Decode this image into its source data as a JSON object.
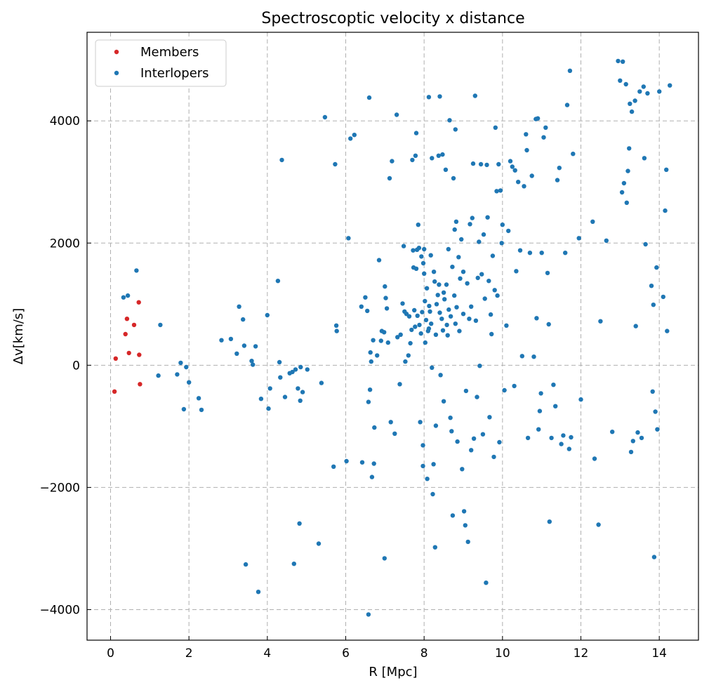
{
  "chart_data": {
    "type": "scatter",
    "title": "Spectroscoptic velocity x distance",
    "xlabel": "R [Mpc]",
    "ylabel": "Δv[km/s]",
    "xlim": [
      -0.6,
      15.0
    ],
    "ylim": [
      -4500,
      5450
    ],
    "xticks": [
      0,
      2,
      4,
      6,
      8,
      10,
      12,
      14
    ],
    "yticks": [
      -4000,
      -2000,
      0,
      2000,
      4000
    ],
    "xtick_labels": [
      "0",
      "2",
      "4",
      "6",
      "8",
      "10",
      "12",
      "14"
    ],
    "ytick_labels": [
      "−4000",
      "−2000",
      "0",
      "2000",
      "4000"
    ],
    "grid": true,
    "legend_position": "top-left",
    "series": [
      {
        "name": "Members",
        "color": "#d62728",
        "points": [
          [
            0.1,
            -430
          ],
          [
            0.13,
            110
          ],
          [
            0.38,
            510
          ],
          [
            0.42,
            760
          ],
          [
            0.47,
            200
          ],
          [
            0.6,
            660
          ],
          [
            0.72,
            1030
          ],
          [
            0.73,
            170
          ],
          [
            0.75,
            -310
          ]
        ]
      },
      {
        "name": "Interlopers",
        "color": "#1f77b4",
        "points": [
          [
            0.33,
            1110
          ],
          [
            0.44,
            1140
          ],
          [
            0.66,
            1550
          ],
          [
            1.22,
            -170
          ],
          [
            1.27,
            660
          ],
          [
            1.7,
            -150
          ],
          [
            1.79,
            40
          ],
          [
            1.87,
            -720
          ],
          [
            1.93,
            -30
          ],
          [
            2.0,
            -280
          ],
          [
            2.25,
            -540
          ],
          [
            2.32,
            -730
          ],
          [
            2.83,
            410
          ],
          [
            3.07,
            430
          ],
          [
            3.22,
            190
          ],
          [
            3.28,
            960
          ],
          [
            3.38,
            750
          ],
          [
            3.41,
            320
          ],
          [
            3.45,
            -3260
          ],
          [
            3.6,
            70
          ],
          [
            3.63,
            10
          ],
          [
            3.7,
            310
          ],
          [
            3.77,
            -3710
          ],
          [
            3.84,
            -550
          ],
          [
            4.0,
            820
          ],
          [
            4.03,
            -710
          ],
          [
            4.07,
            -380
          ],
          [
            4.27,
            1380
          ],
          [
            4.31,
            50
          ],
          [
            4.33,
            -200
          ],
          [
            4.37,
            3360
          ],
          [
            4.45,
            -520
          ],
          [
            4.57,
            -130
          ],
          [
            4.64,
            -110
          ],
          [
            4.68,
            -3250
          ],
          [
            4.72,
            -70
          ],
          [
            4.78,
            -380
          ],
          [
            4.82,
            -2590
          ],
          [
            4.84,
            -580
          ],
          [
            4.85,
            -30
          ],
          [
            4.9,
            -440
          ],
          [
            5.02,
            -70
          ],
          [
            5.31,
            -2920
          ],
          [
            5.38,
            -290
          ],
          [
            5.47,
            4060
          ],
          [
            5.69,
            -1660
          ],
          [
            5.73,
            3290
          ],
          [
            5.76,
            650
          ],
          [
            5.77,
            560
          ],
          [
            6.02,
            -1570
          ],
          [
            6.07,
            2080
          ],
          [
            6.12,
            3710
          ],
          [
            6.22,
            3770
          ],
          [
            6.42,
            -1590
          ],
          [
            6.4,
            960
          ],
          [
            6.5,
            1110
          ],
          [
            6.55,
            890
          ],
          [
            6.58,
            -4080
          ],
          [
            6.58,
            -600
          ],
          [
            6.6,
            4380
          ],
          [
            6.62,
            -400
          ],
          [
            6.63,
            210
          ],
          [
            6.65,
            60
          ],
          [
            6.67,
            -1830
          ],
          [
            6.7,
            410
          ],
          [
            6.72,
            -1610
          ],
          [
            6.73,
            -1020
          ],
          [
            6.8,
            160
          ],
          [
            6.85,
            1720
          ],
          [
            6.9,
            400
          ],
          [
            6.92,
            560
          ],
          [
            6.98,
            540
          ],
          [
            6.99,
            -3160
          ],
          [
            7.0,
            1290
          ],
          [
            7.02,
            1100
          ],
          [
            7.05,
            930
          ],
          [
            7.08,
            370
          ],
          [
            7.12,
            3060
          ],
          [
            7.15,
            -930
          ],
          [
            7.18,
            3340
          ],
          [
            7.25,
            -1120
          ],
          [
            7.3,
            4100
          ],
          [
            7.32,
            460
          ],
          [
            7.38,
            -310
          ],
          [
            7.4,
            500
          ],
          [
            7.45,
            1010
          ],
          [
            7.48,
            1950
          ],
          [
            7.5,
            880
          ],
          [
            7.52,
            60
          ],
          [
            7.55,
            840
          ],
          [
            7.6,
            160
          ],
          [
            7.62,
            800
          ],
          [
            7.65,
            360
          ],
          [
            7.68,
            580
          ],
          [
            7.7,
            3360
          ],
          [
            7.72,
            1880
          ],
          [
            7.73,
            1600
          ],
          [
            7.75,
            900
          ],
          [
            7.77,
            630
          ],
          [
            7.78,
            3430
          ],
          [
            7.8,
            3800
          ],
          [
            7.8,
            1580
          ],
          [
            7.82,
            1890
          ],
          [
            7.83,
            810
          ],
          [
            7.85,
            2300
          ],
          [
            7.87,
            1920
          ],
          [
            7.88,
            660
          ],
          [
            7.9,
            -930
          ],
          [
            7.92,
            520
          ],
          [
            7.93,
            1780
          ],
          [
            7.95,
            870
          ],
          [
            7.97,
            -1310
          ],
          [
            7.97,
            -1650
          ],
          [
            7.98,
            1670
          ],
          [
            8.0,
            1900
          ],
          [
            8.0,
            1500
          ],
          [
            8.02,
            1050
          ],
          [
            8.03,
            370
          ],
          [
            8.05,
            740
          ],
          [
            8.07,
            1260
          ],
          [
            8.08,
            -1860
          ],
          [
            8.1,
            560
          ],
          [
            8.12,
            4390
          ],
          [
            8.12,
            600
          ],
          [
            8.13,
            970
          ],
          [
            8.15,
            880
          ],
          [
            8.17,
            1800
          ],
          [
            8.18,
            680
          ],
          [
            8.2,
            -40
          ],
          [
            8.2,
            3390
          ],
          [
            8.22,
            -2110
          ],
          [
            8.24,
            -1620
          ],
          [
            8.25,
            1530
          ],
          [
            8.27,
            1370
          ],
          [
            8.28,
            -2980
          ],
          [
            8.3,
            -990
          ],
          [
            8.3,
            500
          ],
          [
            8.32,
            1000
          ],
          [
            8.35,
            1150
          ],
          [
            8.37,
            3430
          ],
          [
            8.38,
            1320
          ],
          [
            8.4,
            4400
          ],
          [
            8.4,
            860
          ],
          [
            8.42,
            -160
          ],
          [
            8.45,
            760
          ],
          [
            8.47,
            3450
          ],
          [
            8.48,
            570
          ],
          [
            8.5,
            -590
          ],
          [
            8.5,
            1190
          ],
          [
            8.52,
            1080
          ],
          [
            8.55,
            3200
          ],
          [
            8.57,
            1320
          ],
          [
            8.58,
            660
          ],
          [
            8.6,
            490
          ],
          [
            8.62,
            1900
          ],
          [
            8.63,
            910
          ],
          [
            8.65,
            4010
          ],
          [
            8.67,
            -860
          ],
          [
            8.68,
            800
          ],
          [
            8.7,
            -1080
          ],
          [
            8.72,
            1610
          ],
          [
            8.73,
            -2460
          ],
          [
            8.75,
            3060
          ],
          [
            8.77,
            1140
          ],
          [
            8.78,
            2220
          ],
          [
            8.8,
            3860
          ],
          [
            8.8,
            680
          ],
          [
            8.82,
            2350
          ],
          [
            8.83,
            950
          ],
          [
            8.85,
            -1250
          ],
          [
            8.88,
            1770
          ],
          [
            8.9,
            560
          ],
          [
            8.92,
            1420
          ],
          [
            8.95,
            2060
          ],
          [
            8.97,
            -1700
          ],
          [
            9.0,
            1530
          ],
          [
            9.0,
            840
          ],
          [
            9.02,
            -2390
          ],
          [
            9.05,
            -2620
          ],
          [
            9.07,
            -420
          ],
          [
            9.1,
            1340
          ],
          [
            9.12,
            -2890
          ],
          [
            9.15,
            760
          ],
          [
            9.17,
            2310
          ],
          [
            9.2,
            -1390
          ],
          [
            9.2,
            960
          ],
          [
            9.23,
            2410
          ],
          [
            9.25,
            3300
          ],
          [
            9.27,
            -1200
          ],
          [
            9.3,
            4410
          ],
          [
            9.32,
            730
          ],
          [
            9.35,
            -520
          ],
          [
            9.37,
            1430
          ],
          [
            9.4,
            2020
          ],
          [
            9.42,
            -10
          ],
          [
            9.45,
            3290
          ],
          [
            9.47,
            1490
          ],
          [
            9.5,
            -1130
          ],
          [
            9.52,
            2140
          ],
          [
            9.55,
            1090
          ],
          [
            9.58,
            -3560
          ],
          [
            9.6,
            3280
          ],
          [
            9.62,
            2420
          ],
          [
            9.65,
            1380
          ],
          [
            9.67,
            -850
          ],
          [
            9.7,
            830
          ],
          [
            9.72,
            510
          ],
          [
            9.75,
            1790
          ],
          [
            9.78,
            -1500
          ],
          [
            9.8,
            1230
          ],
          [
            9.82,
            3890
          ],
          [
            9.85,
            2850
          ],
          [
            9.87,
            1140
          ],
          [
            9.9,
            3290
          ],
          [
            9.92,
            -1260
          ],
          [
            9.95,
            2860
          ],
          [
            9.98,
            2000
          ],
          [
            10.0,
            2300
          ],
          [
            10.05,
            -410
          ],
          [
            10.1,
            650
          ],
          [
            10.15,
            2200
          ],
          [
            10.2,
            3340
          ],
          [
            10.25,
            3250
          ],
          [
            10.3,
            -340
          ],
          [
            10.32,
            3190
          ],
          [
            10.35,
            1540
          ],
          [
            10.4,
            3000
          ],
          [
            10.45,
            1880
          ],
          [
            10.5,
            150
          ],
          [
            10.55,
            2930
          ],
          [
            10.6,
            3780
          ],
          [
            10.62,
            3520
          ],
          [
            10.65,
            -1190
          ],
          [
            10.7,
            1840
          ],
          [
            10.75,
            3100
          ],
          [
            10.8,
            140
          ],
          [
            10.85,
            4030
          ],
          [
            10.87,
            770
          ],
          [
            10.9,
            4040
          ],
          [
            10.92,
            -1050
          ],
          [
            10.95,
            -750
          ],
          [
            10.98,
            -460
          ],
          [
            11.0,
            1840
          ],
          [
            11.05,
            3730
          ],
          [
            11.1,
            3890
          ],
          [
            11.15,
            1510
          ],
          [
            11.18,
            670
          ],
          [
            11.2,
            -2560
          ],
          [
            11.25,
            -1190
          ],
          [
            11.3,
            -320
          ],
          [
            11.35,
            -670
          ],
          [
            11.4,
            3030
          ],
          [
            11.45,
            3230
          ],
          [
            11.5,
            -1290
          ],
          [
            11.55,
            -1150
          ],
          [
            11.6,
            1840
          ],
          [
            11.65,
            4260
          ],
          [
            11.7,
            -1370
          ],
          [
            11.72,
            4820
          ],
          [
            11.75,
            -1180
          ],
          [
            11.8,
            3460
          ],
          [
            11.95,
            2080
          ],
          [
            12.0,
            -560
          ],
          [
            12.3,
            2350
          ],
          [
            12.35,
            -1530
          ],
          [
            12.45,
            -2610
          ],
          [
            12.5,
            720
          ],
          [
            12.65,
            2040
          ],
          [
            12.8,
            -1090
          ],
          [
            12.95,
            4980
          ],
          [
            13.0,
            4660
          ],
          [
            13.05,
            2830
          ],
          [
            13.07,
            4970
          ],
          [
            13.1,
            2980
          ],
          [
            13.15,
            4600
          ],
          [
            13.17,
            2660
          ],
          [
            13.2,
            3180
          ],
          [
            13.23,
            3550
          ],
          [
            13.25,
            4280
          ],
          [
            13.28,
            -1420
          ],
          [
            13.3,
            4150
          ],
          [
            13.33,
            -1240
          ],
          [
            13.38,
            4330
          ],
          [
            13.4,
            640
          ],
          [
            13.45,
            -1100
          ],
          [
            13.5,
            4480
          ],
          [
            13.55,
            -1190
          ],
          [
            13.6,
            4560
          ],
          [
            13.62,
            3390
          ],
          [
            13.65,
            1980
          ],
          [
            13.7,
            4450
          ],
          [
            13.8,
            1300
          ],
          [
            13.83,
            -430
          ],
          [
            13.85,
            990
          ],
          [
            13.87,
            -3140
          ],
          [
            13.9,
            -760
          ],
          [
            13.93,
            1600
          ],
          [
            13.95,
            -1050
          ],
          [
            14.0,
            4480
          ],
          [
            14.1,
            1120
          ],
          [
            14.15,
            2530
          ],
          [
            14.18,
            3200
          ],
          [
            14.2,
            560
          ],
          [
            14.27,
            4580
          ]
        ]
      }
    ]
  }
}
